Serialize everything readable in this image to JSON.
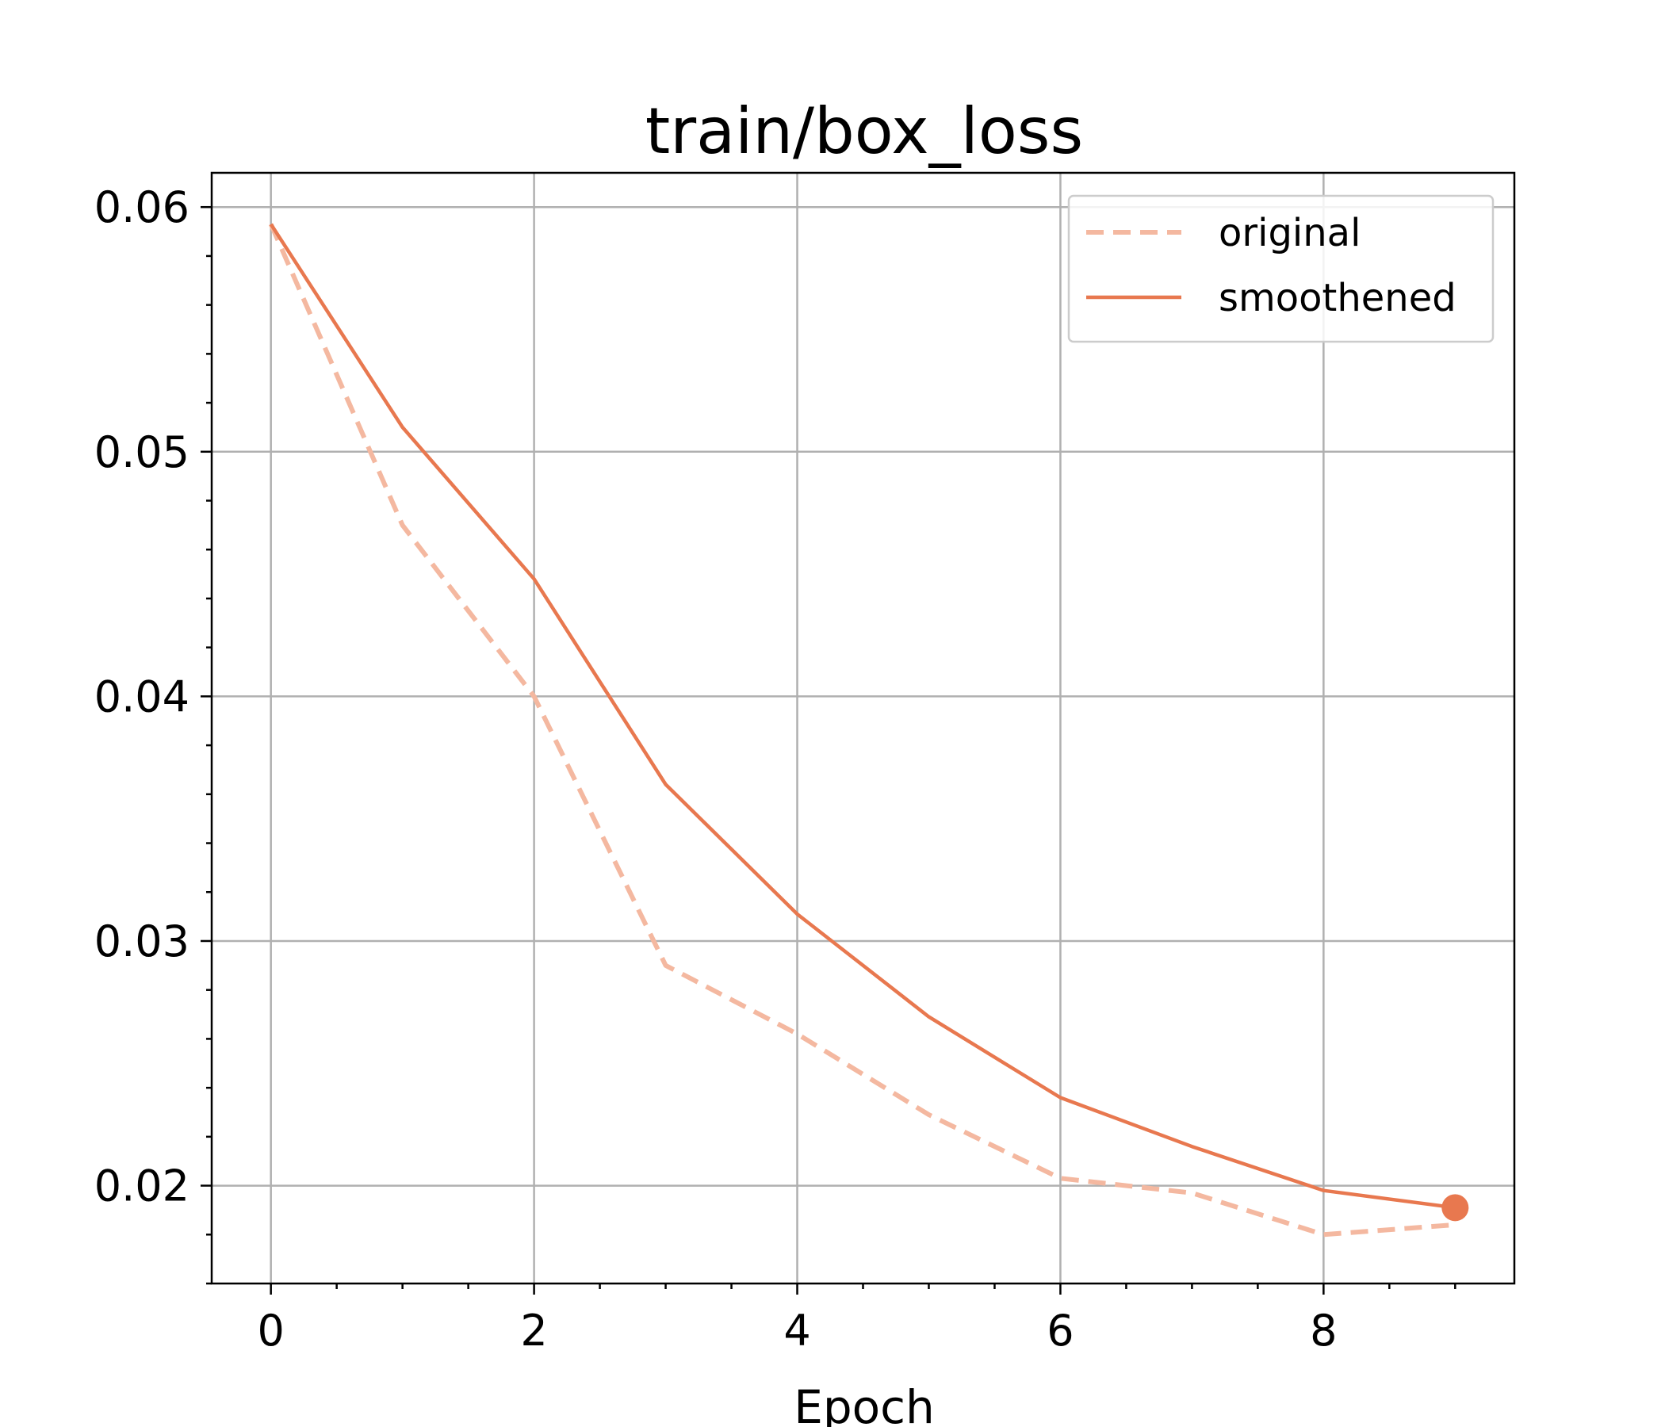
{
  "chart_data": {
    "type": "line",
    "title": "train/box_loss",
    "xlabel": "Epoch",
    "ylabel": "",
    "xlim": [
      -0.45,
      9.45
    ],
    "ylim": [
      0.016,
      0.0614
    ],
    "grid": true,
    "legend_placement": "top-right",
    "x_ticks": [
      0,
      2,
      4,
      6,
      8
    ],
    "x_tick_labels": [
      "0",
      "2",
      "4",
      "6",
      "8"
    ],
    "x_minor_ticks": [
      0.5,
      1,
      1.5,
      2.5,
      3,
      3.5,
      4.5,
      5,
      5.5,
      6.5,
      7,
      7.5,
      8.5,
      9
    ],
    "y_ticks": [
      0.02,
      0.03,
      0.04,
      0.05,
      0.06
    ],
    "y_tick_labels": [
      "0.02",
      "0.03",
      "0.04",
      "0.05",
      "0.06"
    ],
    "y_minor_ticks": [
      0.016,
      0.018,
      0.022,
      0.024,
      0.026,
      0.028,
      0.032,
      0.034,
      0.036,
      0.038,
      0.042,
      0.044,
      0.046,
      0.048,
      0.052,
      0.054,
      0.056,
      0.058
    ],
    "x": [
      0,
      1,
      2,
      3,
      4,
      5,
      6,
      7,
      8,
      9
    ],
    "series": [
      {
        "name": "original",
        "style": "dashed",
        "color": "#f4b8a0",
        "values": [
          0.0593,
          0.047,
          0.04,
          0.029,
          0.0262,
          0.0229,
          0.0203,
          0.0197,
          0.018,
          0.0184
        ]
      },
      {
        "name": "smoothened",
        "style": "solid",
        "color": "#e8784f",
        "values": [
          0.0593,
          0.051,
          0.0448,
          0.0364,
          0.0311,
          0.0269,
          0.0236,
          0.0216,
          0.0198,
          0.0191
        ],
        "end_marker": true
      }
    ]
  }
}
